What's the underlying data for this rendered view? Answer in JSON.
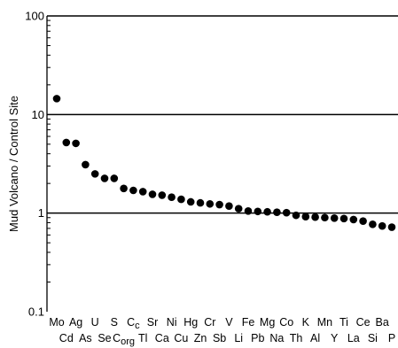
{
  "chart_data": {
    "type": "scatter",
    "ylabel": "Mud Volcano / Control Site",
    "yscale": "log",
    "ylim": [
      0.1,
      100
    ],
    "y_ticks": [
      "0.1",
      "1",
      "10",
      "100"
    ],
    "grid": "horizontal lines at 1, 10, 100",
    "marker_color": "#000000",
    "categories": [
      {
        "label": "Mo",
        "value": 14.5
      },
      {
        "label": "Cd",
        "value": 5.2
      },
      {
        "label": "Ag",
        "value": 5.1
      },
      {
        "label": "As",
        "value": 3.1
      },
      {
        "label": "U",
        "value": 2.5
      },
      {
        "label": "Se",
        "value": 2.25
      },
      {
        "label": "S",
        "value": 2.25
      },
      {
        "label": "C",
        "sub": "org",
        "value": 1.78
      },
      {
        "label": "C",
        "sub": "c",
        "value": 1.7
      },
      {
        "label": "Tl",
        "value": 1.65
      },
      {
        "label": "Sr",
        "value": 1.55
      },
      {
        "label": "Ca",
        "value": 1.52
      },
      {
        "label": "Ni",
        "value": 1.45
      },
      {
        "label": "Cu",
        "value": 1.38
      },
      {
        "label": "Hg",
        "value": 1.3
      },
      {
        "label": "Zn",
        "value": 1.27
      },
      {
        "label": "Cr",
        "value": 1.24
      },
      {
        "label": "Sb",
        "value": 1.22
      },
      {
        "label": "V",
        "value": 1.18
      },
      {
        "label": "Li",
        "value": 1.11
      },
      {
        "label": "Fe",
        "value": 1.05
      },
      {
        "label": "Pb",
        "value": 1.04
      },
      {
        "label": "Mg",
        "value": 1.03
      },
      {
        "label": "Na",
        "value": 1.02
      },
      {
        "label": "Co",
        "value": 1.01
      },
      {
        "label": "Th",
        "value": 0.95
      },
      {
        "label": "K",
        "value": 0.92
      },
      {
        "label": "Al",
        "value": 0.91
      },
      {
        "label": "Mn",
        "value": 0.9
      },
      {
        "label": "Y",
        "value": 0.89
      },
      {
        "label": "Ti",
        "value": 0.88
      },
      {
        "label": "La",
        "value": 0.86
      },
      {
        "label": "Ce",
        "value": 0.83
      },
      {
        "label": "Si",
        "value": 0.77
      },
      {
        "label": "Ba",
        "value": 0.74
      },
      {
        "label": "P",
        "value": 0.72
      }
    ]
  }
}
